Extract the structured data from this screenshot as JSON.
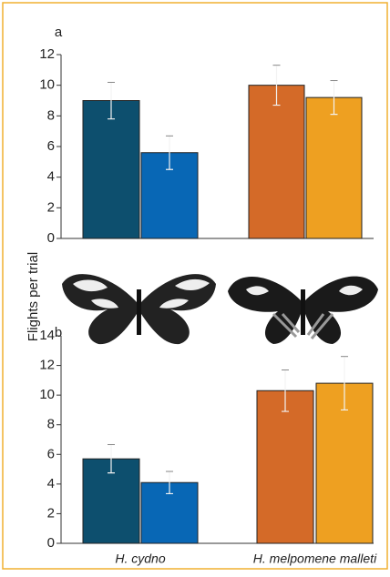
{
  "chart_data": [
    {
      "type": "bar",
      "label": "a",
      "ylabel": "Flights per trial",
      "categories": [
        null,
        null
      ],
      "series": [
        {
          "colors": [
            "#0d4f6e",
            "#d46a28"
          ],
          "values": [
            9.0,
            10.0
          ],
          "errors": [
            1.2,
            1.3
          ]
        },
        {
          "colors": [
            "#0867b5",
            "#eea021"
          ],
          "values": [
            5.6,
            9.2
          ],
          "errors": [
            1.1,
            1.1
          ]
        }
      ],
      "ylim": [
        0,
        12
      ],
      "yticks": [
        0,
        2,
        4,
        6,
        8,
        10,
        12
      ]
    },
    {
      "type": "bar",
      "label": "b",
      "categories": [
        "H. cydno",
        "H. melpomene malleti"
      ],
      "series": [
        {
          "colors": [
            "#0d4f6e",
            "#d46a28"
          ],
          "values": [
            5.7,
            10.3
          ],
          "errors": [
            0.95,
            1.4
          ]
        },
        {
          "colors": [
            "#0867b5",
            "#eea021"
          ],
          "values": [
            4.1,
            10.8
          ],
          "errors": [
            0.75,
            1.8
          ]
        }
      ],
      "ylim": [
        0,
        14
      ],
      "yticks": [
        0,
        2,
        4,
        6,
        8,
        10,
        12,
        14
      ]
    }
  ]
}
